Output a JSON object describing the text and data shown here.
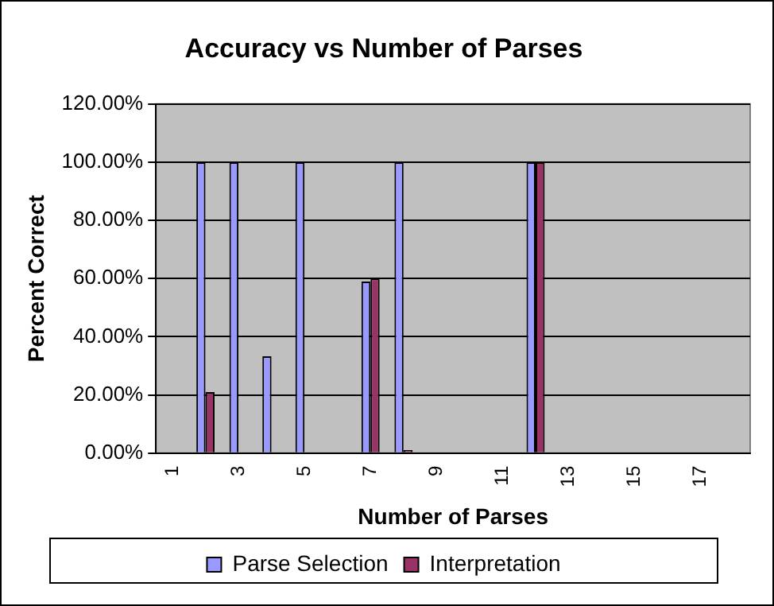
{
  "chart_data": {
    "type": "bar",
    "title": "Accuracy vs Number of Parses",
    "xlabel": "Number of Parses",
    "ylabel": "Percent Correct",
    "categories": [
      "1",
      null,
      "3",
      null,
      "5",
      null,
      "7",
      null,
      "9",
      null,
      "11",
      null,
      "13",
      null,
      "15",
      null,
      "17",
      null
    ],
    "series": [
      {
        "name": "Parse Selection",
        "color": "#9999ff",
        "values": [
          0,
          100,
          100,
          33.3,
          100,
          0,
          59,
          100,
          0,
          0,
          0,
          100,
          0,
          0,
          0,
          0,
          0,
          0
        ]
      },
      {
        "name": "Interpretation",
        "color": "#993366",
        "values": [
          0,
          21,
          0,
          0,
          0,
          0,
          60,
          1,
          0,
          0,
          0,
          100,
          0,
          0,
          0,
          0,
          0,
          0
        ]
      }
    ],
    "ylim": [
      0,
      120
    ],
    "yticks": [
      {
        "value": 0,
        "label": "0.00%"
      },
      {
        "value": 20,
        "label": "20.00%"
      },
      {
        "value": 40,
        "label": "40.00%"
      },
      {
        "value": 60,
        "label": "60.00%"
      },
      {
        "value": 80,
        "label": "80.00%"
      },
      {
        "value": 100,
        "label": "100.00%"
      },
      {
        "value": 120,
        "label": "120.00%"
      }
    ],
    "grid": "y",
    "legend": "bottom"
  }
}
